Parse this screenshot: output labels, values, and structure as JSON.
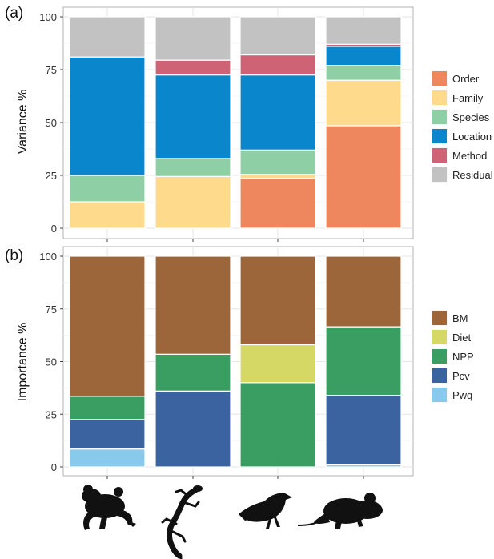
{
  "chart_data": [
    {
      "type": "bar",
      "stacked": true,
      "panel_label": "(a)",
      "title": "",
      "xlabel": "",
      "ylabel": "Variance %",
      "ylim": [
        0,
        100
      ],
      "yticks": [
        0,
        25,
        50,
        75,
        100
      ],
      "grid": true,
      "legend_position": "right",
      "categories": [
        "frog",
        "lizard",
        "bird",
        "mouse"
      ],
      "series": [
        {
          "name": "Order",
          "color": "#EE875E",
          "values": [
            0,
            0,
            23.5,
            48.5
          ]
        },
        {
          "name": "Family",
          "color": "#FEDA8D",
          "values": [
            12.5,
            24.5,
            2.0,
            21.5
          ]
        },
        {
          "name": "Species",
          "color": "#8ECFA5",
          "values": [
            12.5,
            8.5,
            11.5,
            7.0
          ]
        },
        {
          "name": "Location",
          "color": "#0A86CC",
          "values": [
            56.0,
            39.5,
            35.5,
            9.0
          ]
        },
        {
          "name": "Method",
          "color": "#CD6375",
          "values": [
            0,
            7.0,
            9.5,
            1.0
          ]
        },
        {
          "name": "Residual",
          "color": "#C2C2C2",
          "values": [
            19.0,
            20.5,
            18.0,
            13.0
          ]
        }
      ]
    },
    {
      "type": "bar",
      "stacked": true,
      "panel_label": "(b)",
      "title": "",
      "xlabel": "",
      "ylabel": "Importance %",
      "ylim": [
        0,
        100
      ],
      "yticks": [
        0,
        25,
        50,
        75,
        100
      ],
      "grid": true,
      "legend_position": "right",
      "categories": [
        "frog",
        "lizard",
        "bird",
        "mouse"
      ],
      "series": [
        {
          "name": "Pwq",
          "color": "#89C9EB",
          "values": [
            8.5,
            0,
            0,
            1.0
          ]
        },
        {
          "name": "Pcv",
          "color": "#3B639F",
          "values": [
            14.0,
            36.0,
            0,
            33.0
          ]
        },
        {
          "name": "NPP",
          "color": "#3A9E63",
          "values": [
            11.0,
            17.5,
            40.0,
            32.5
          ]
        },
        {
          "name": "Diet",
          "color": "#D6D866",
          "values": [
            0,
            0,
            18.0,
            0
          ]
        },
        {
          "name": "BM",
          "color": "#9C663A",
          "values": [
            66.5,
            46.5,
            42.0,
            33.5
          ]
        }
      ],
      "legend_order": [
        "BM",
        "Diet",
        "NPP",
        "Pcv",
        "Pwq"
      ]
    }
  ],
  "icons": [
    "frog-silhouette-icon",
    "lizard-silhouette-icon",
    "bird-silhouette-icon",
    "mouse-silhouette-icon"
  ]
}
